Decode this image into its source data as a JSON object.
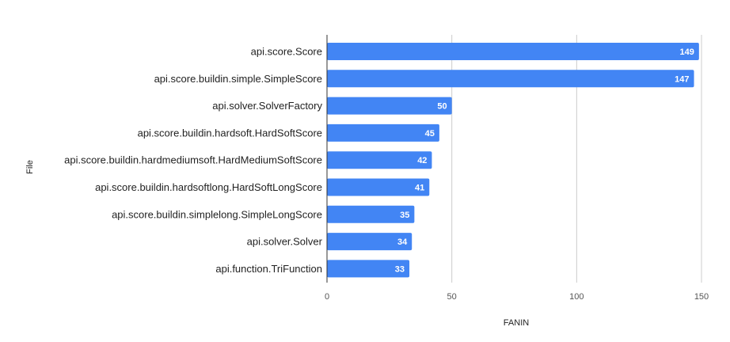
{
  "chart_data": {
    "type": "bar",
    "orientation": "horizontal",
    "title": "",
    "xlabel": "FANIN",
    "ylabel": "File",
    "xlim": [
      0,
      150
    ],
    "xticks": [
      0,
      50,
      100,
      150
    ],
    "grid": true,
    "bar_color": "#4285F4",
    "categories": [
      "api.score.Score",
      "api.score.buildin.simple.SimpleScore",
      "api.solver.SolverFactory",
      "api.score.buildin.hardsoft.HardSoftScore",
      "api.score.buildin.hardmediumsoft.HardMediumSoftScore",
      "api.score.buildin.hardsoftlong.HardSoftLongScore",
      "api.score.buildin.simplelong.SimpleLongScore",
      "api.solver.Solver",
      "api.function.TriFunction"
    ],
    "values": [
      149,
      147,
      50,
      45,
      42,
      41,
      35,
      34,
      33
    ]
  }
}
